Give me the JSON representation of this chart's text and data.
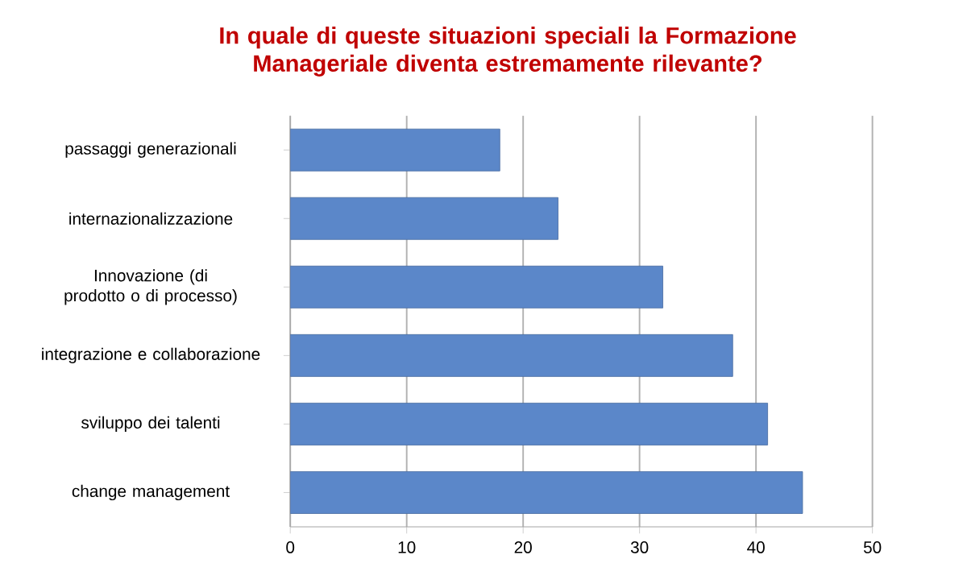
{
  "chart_data": {
    "type": "bar",
    "orientation": "horizontal",
    "title": "In quale di queste situazioni speciali la Formazione Manageriale diventa estremamente rilevante?",
    "categories": [
      "passaggi generazionali",
      "internazionalizzazione",
      "Innovazione (di prodotto o di processo)",
      "integrazione e collaborazione",
      "sviluppo dei talenti",
      "change management"
    ],
    "values": [
      18,
      23,
      32,
      38,
      41,
      44
    ],
    "color": "#5b87c9",
    "xlim": [
      0,
      50
    ],
    "xticks": [
      0,
      10,
      20,
      30,
      40,
      50
    ],
    "grid": "x"
  }
}
